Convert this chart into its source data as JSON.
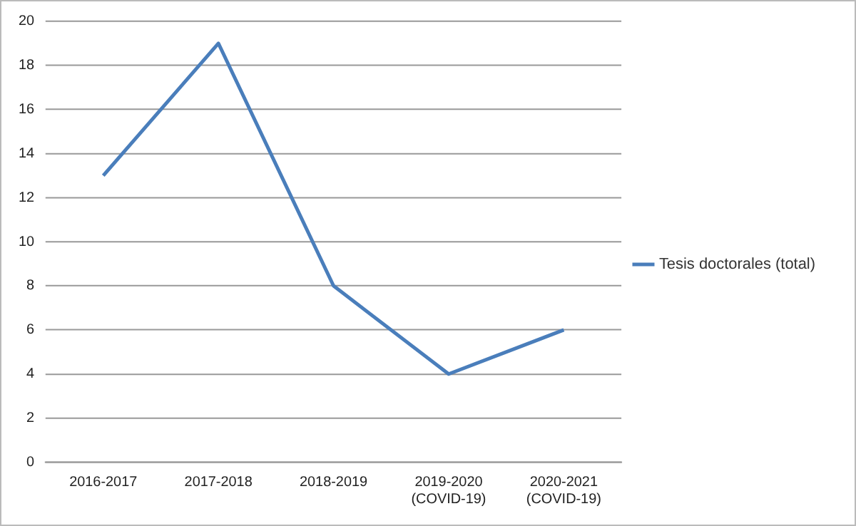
{
  "chart_data": {
    "type": "line",
    "categories": [
      "2016-2017",
      "2017-2018",
      "2018-2019",
      "2019-2020 (COVID-19)",
      "2020-2021 (COVID-19)"
    ],
    "series": [
      {
        "name": "Tesis doctorales (total)",
        "color": "#4a7ebb",
        "values": [
          13,
          19,
          8,
          4,
          6
        ]
      }
    ],
    "ylim": [
      0,
      20
    ],
    "yticks": [
      0,
      2,
      4,
      6,
      8,
      10,
      12,
      14,
      16,
      18,
      20
    ],
    "grid": "y",
    "legend": "right",
    "marker": "none",
    "line_style": "solid"
  }
}
